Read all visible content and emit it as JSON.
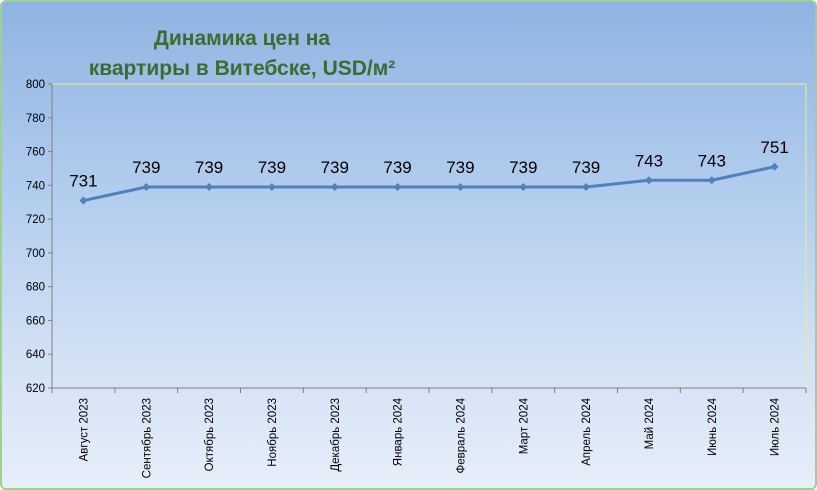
{
  "chart_data": {
    "type": "line",
    "title_lines": [
      "Динамика цен на",
      "квартиры в Витебске, USD/м²"
    ],
    "categories": [
      "Август 2023",
      "Сентябрь 2023",
      "Октябрь 2023",
      "Ноябрь 2023",
      "Декабрь 2023",
      "Январь 2024",
      "Февраль 2024",
      "Март 2024",
      "Апрель 2024",
      "Май 2024",
      "Июнь 2024",
      "Июль 2024"
    ],
    "values": [
      731,
      739,
      739,
      739,
      739,
      739,
      739,
      739,
      739,
      743,
      743,
      751
    ],
    "ylim": [
      620,
      800
    ],
    "yticks": [
      620,
      640,
      660,
      680,
      700,
      720,
      740,
      760,
      780,
      800
    ],
    "grid": false,
    "legend": "none",
    "colors": {
      "line": "#4f81bd",
      "marker": "#4f81bd",
      "plot_border": "#e8f08a",
      "title": "#3e6b34"
    }
  }
}
